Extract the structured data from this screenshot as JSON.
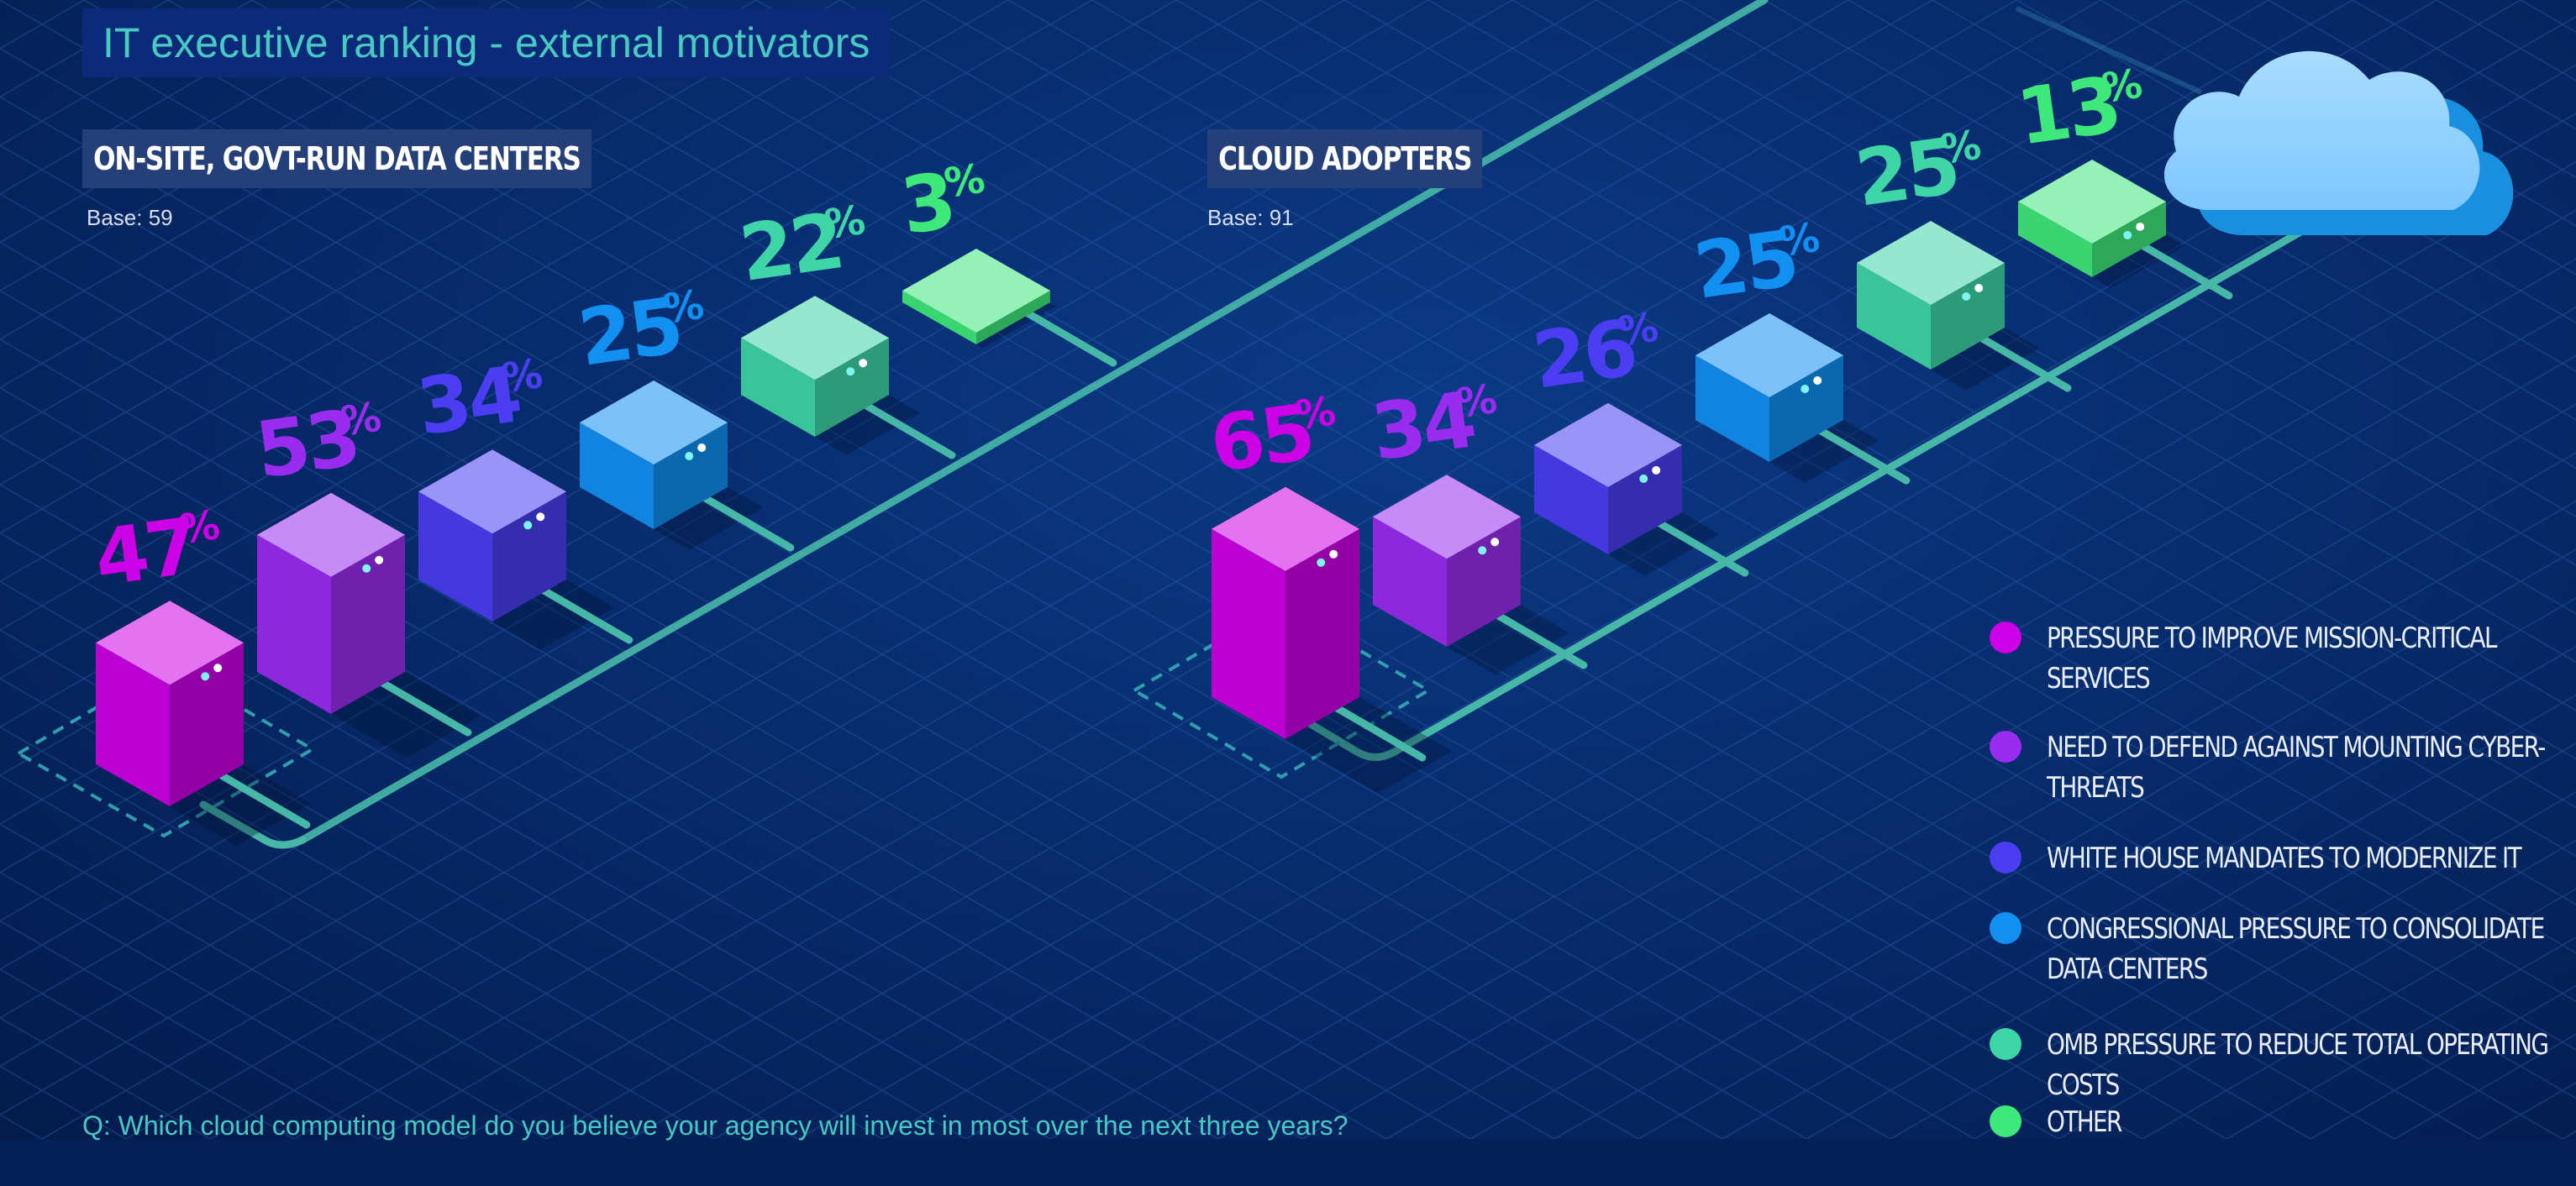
{
  "title": "IT executive ranking - external motivators",
  "question": "Q: Which cloud computing model do you believe your agency will invest in most over the next three years?",
  "legend": [
    {
      "label": "PRESSURE TO IMPROVE MISSION-CRITICAL SERVICES",
      "color": "#cc00e6"
    },
    {
      "label": "NEED TO DEFEND AGAINST MOUNTING CYBER-THREATS",
      "color": "#9a2cf0"
    },
    {
      "label": "WHITE HOUSE MANDATES TO MODERNIZE IT",
      "color": "#4a3df2"
    },
    {
      "label": "CONGRESSIONAL PRESSURE TO CONSOLIDATE DATA CENTERS",
      "color": "#1190f2"
    },
    {
      "label": "OMB PRESSURE TO REDUCE TOTAL OPERATING COSTS",
      "color": "#3ed6a6"
    },
    {
      "label": "OTHER",
      "color": "#3ee87a"
    }
  ],
  "chart_data": [
    {
      "type": "bar",
      "title": "ON-SITE, GOVT-RUN DATA CENTERS",
      "base": "Base: 59",
      "categories": [
        "PRESSURE TO IMPROVE MISSION-CRITICAL SERVICES",
        "NEED TO DEFEND AGAINST MOUNTING CYBER-THREATS",
        "WHITE HOUSE MANDATES TO MODERNIZE IT",
        "CONGRESSIONAL PRESSURE TO CONSOLIDATE DATA CENTERS",
        "OMB PRESSURE TO REDUCE TOTAL OPERATING COSTS",
        "OTHER"
      ],
      "values": [
        47,
        53,
        34,
        25,
        22,
        3
      ],
      "value_labels": [
        "47",
        "53",
        "34",
        "25",
        "22",
        "3"
      ],
      "unit": "%"
    },
    {
      "type": "bar",
      "title": "CLOUD ADOPTERS",
      "base": "Base: 91",
      "categories": [
        "PRESSURE TO IMPROVE MISSION-CRITICAL SERVICES",
        "NEED TO DEFEND AGAINST MOUNTING CYBER-THREATS",
        "WHITE HOUSE MANDATES TO MODERNIZE IT",
        "CONGRESSIONAL PRESSURE TO CONSOLIDATE DATA CENTERS",
        "OMB PRESSURE TO REDUCE TOTAL OPERATING COSTS",
        "OTHER"
      ],
      "values": [
        65,
        34,
        26,
        25,
        25,
        13
      ],
      "value_labels": [
        "65",
        "34",
        "26",
        "25",
        "25",
        "13"
      ],
      "unit": "%"
    }
  ]
}
